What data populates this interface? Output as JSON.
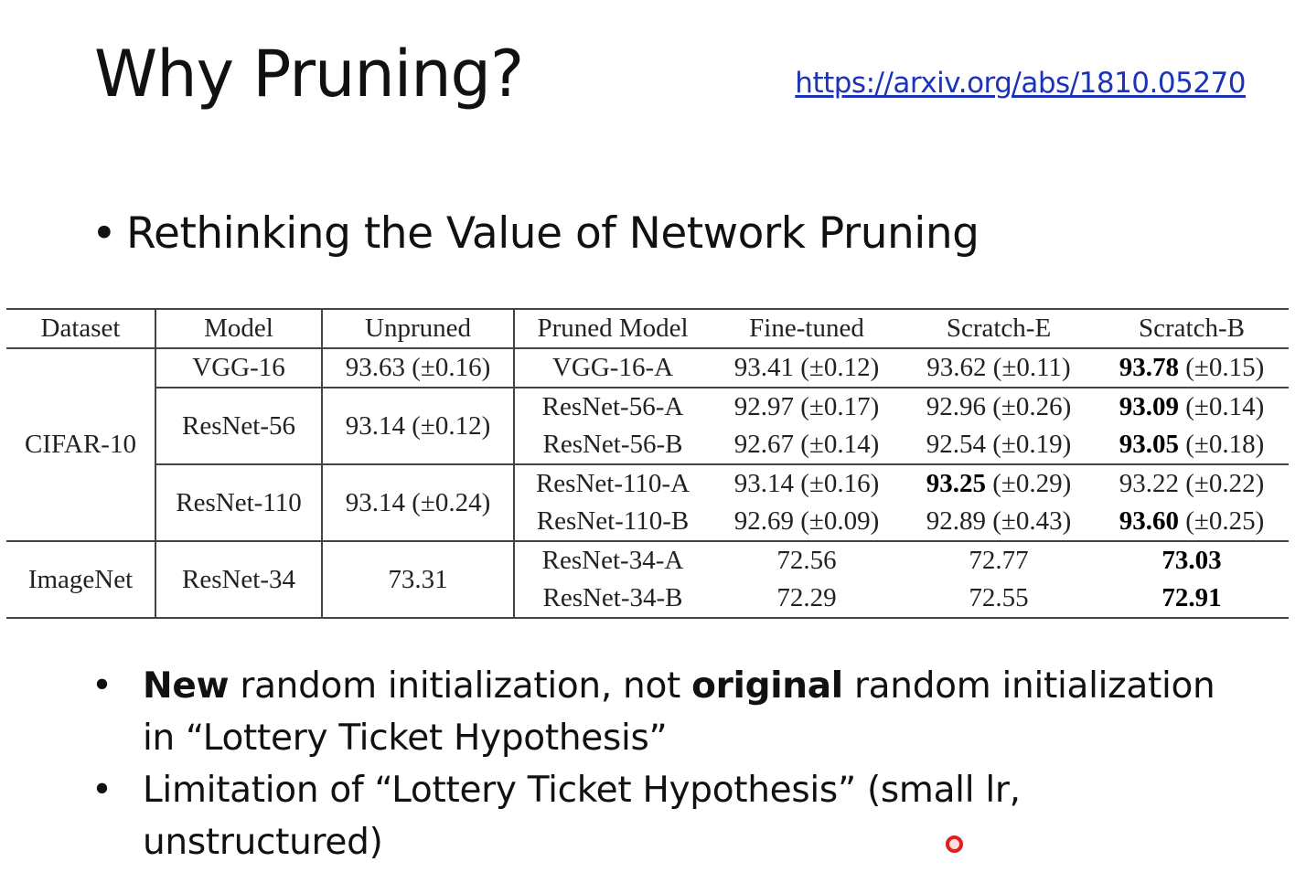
{
  "slide": {
    "title": "Why Pruning?",
    "link": "https://arxiv.org/abs/1810.05270",
    "main_bullet": "Rethinking the Value of Network Pruning"
  },
  "table": {
    "headers": [
      "Dataset",
      "Model",
      "Unpruned",
      "Pruned Model",
      "Fine-tuned",
      "Scratch-E",
      "Scratch-B"
    ],
    "cifar": {
      "dataset": "CIFAR-10",
      "vgg16": {
        "model": "VGG-16",
        "unpruned": "93.63 (±0.16)",
        "rows": [
          {
            "pruned": "VGG-16-A",
            "ft": "93.41 (±0.12)",
            "se": "93.62 (±0.11)",
            "sb_bold": "93.78",
            "sb_rest": " (±0.15)"
          }
        ]
      },
      "resnet56": {
        "model": "ResNet-56",
        "unpruned": "93.14 (±0.12)",
        "rows": [
          {
            "pruned": "ResNet-56-A",
            "ft": "92.97 (±0.17)",
            "se": "92.96 (±0.26)",
            "sb_bold": "93.09",
            "sb_rest": " (±0.14)"
          },
          {
            "pruned": "ResNet-56-B",
            "ft": "92.67 (±0.14)",
            "se": "92.54 (±0.19)",
            "sb_bold": "93.05",
            "sb_rest": " (±0.18)"
          }
        ]
      },
      "resnet110": {
        "model": "ResNet-110",
        "unpruned": "93.14 (±0.24)",
        "rows": [
          {
            "pruned": "ResNet-110-A",
            "ft": "93.14 (±0.16)",
            "se_bold": "93.25",
            "se_rest": " (±0.29)",
            "sb": "93.22 (±0.22)"
          },
          {
            "pruned": "ResNet-110-B",
            "ft": "92.69 (±0.09)",
            "se": "92.89 (±0.43)",
            "sb_bold": "93.60",
            "sb_rest": " (±0.25)"
          }
        ]
      }
    },
    "imagenet": {
      "dataset": "ImageNet",
      "resnet34": {
        "model": "ResNet-34",
        "unpruned": "73.31",
        "rows": [
          {
            "pruned": "ResNet-34-A",
            "ft": "72.56",
            "se": "72.77",
            "sb_bold": "73.03"
          },
          {
            "pruned": "ResNet-34-B",
            "ft": "72.29",
            "se": "72.55",
            "sb_bold": "72.91"
          }
        ]
      }
    }
  },
  "bullets": [
    {
      "b1_bold": "New",
      "b1_mid": " random initialization, not ",
      "b1_bold2": "original",
      "b1_end": " random initialization in “Lottery Ticket Hypothesis”"
    },
    {
      "text": "Limitation of “Lottery Ticket Hypothesis” (small lr, unstructured)"
    }
  ],
  "bullet_symbol": "•"
}
